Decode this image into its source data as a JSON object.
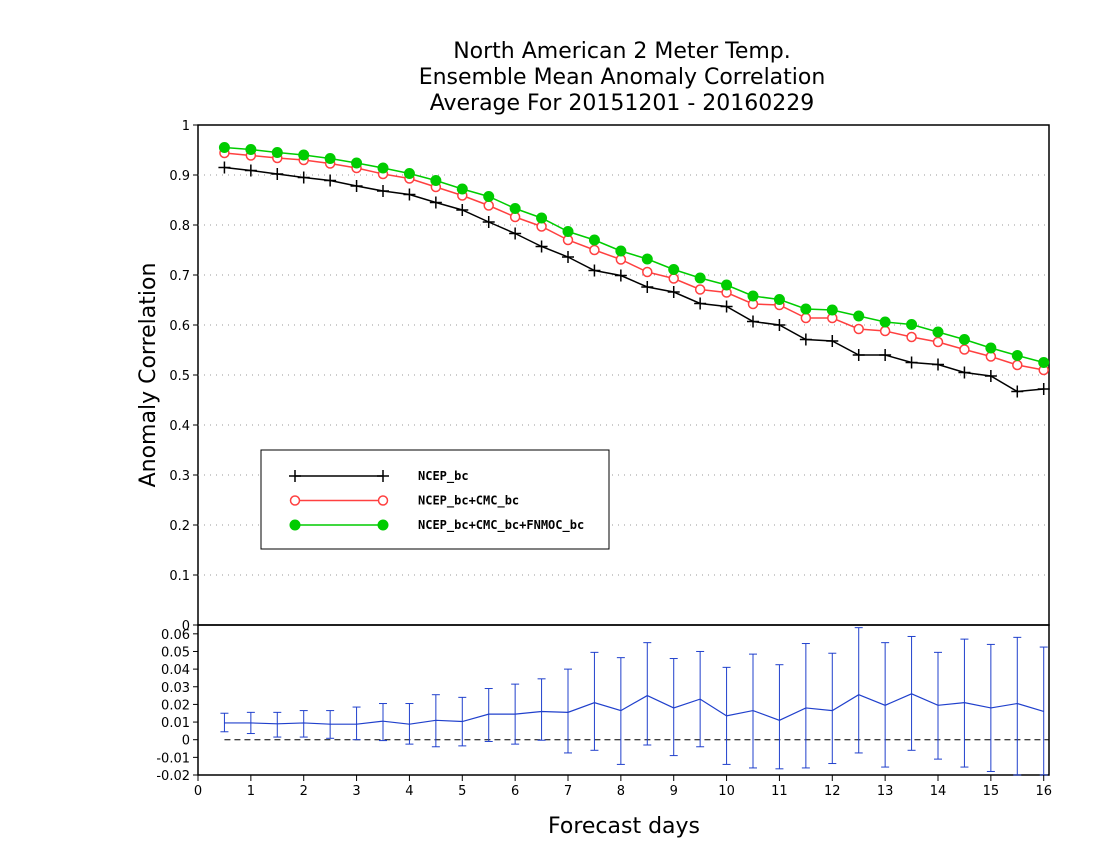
{
  "chart_data": [
    {
      "type": "line",
      "title_lines": [
        "North American 2 Meter Temp.",
        "Ensemble Mean Anomaly Correlation",
        "Average For 20151201 - 20160229"
      ],
      "ylabel": "Anomaly Correlation",
      "ylim": [
        0,
        1
      ],
      "yticks": [
        "0",
        "0.1",
        "0.2",
        "0.3",
        "0.4",
        "0.5",
        "0.6",
        "0.7",
        "0.8",
        "0.9",
        "1"
      ],
      "xlim": [
        0,
        16.1
      ],
      "grid": true,
      "legend_position": "lower-left",
      "x": [
        0.5,
        1,
        1.5,
        2,
        2.5,
        3,
        3.5,
        4,
        4.5,
        5,
        5.5,
        6,
        6.5,
        7,
        7.5,
        8,
        8.5,
        9,
        9.5,
        10,
        10.5,
        11,
        11.5,
        12,
        12.5,
        13,
        13.5,
        14,
        14.5,
        15,
        15.5,
        16
      ],
      "series": [
        {
          "name": "NCEP_bc",
          "color": "#000000",
          "marker": "plus",
          "values": [
            0.915,
            0.909,
            0.902,
            0.895,
            0.889,
            0.878,
            0.868,
            0.861,
            0.845,
            0.83,
            0.806,
            0.783,
            0.757,
            0.736,
            0.709,
            0.699,
            0.676,
            0.666,
            0.643,
            0.637,
            0.607,
            0.6,
            0.571,
            0.568,
            0.54,
            0.54,
            0.525,
            0.521,
            0.505,
            0.498,
            0.467,
            0.472
          ]
        },
        {
          "name": "NCEP_bc+CMC_bc",
          "color": "#ff4040",
          "marker": "open-circle",
          "values": [
            0.944,
            0.939,
            0.934,
            0.93,
            0.923,
            0.914,
            0.902,
            0.893,
            0.876,
            0.859,
            0.839,
            0.816,
            0.797,
            0.77,
            0.75,
            0.731,
            0.706,
            0.693,
            0.671,
            0.665,
            0.642,
            0.64,
            0.614,
            0.614,
            0.592,
            0.588,
            0.576,
            0.566,
            0.551,
            0.537,
            0.52,
            0.51
          ]
        },
        {
          "name": "NCEP_bc+CMC_bc+FNMOC_bc",
          "color": "#00cc00",
          "marker": "filled-circle",
          "values": [
            0.955,
            0.951,
            0.945,
            0.94,
            0.933,
            0.924,
            0.914,
            0.903,
            0.889,
            0.872,
            0.857,
            0.833,
            0.814,
            0.787,
            0.77,
            0.748,
            0.732,
            0.711,
            0.694,
            0.68,
            0.658,
            0.651,
            0.632,
            0.63,
            0.618,
            0.606,
            0.601,
            0.586,
            0.571,
            0.554,
            0.539,
            0.525
          ]
        }
      ]
    },
    {
      "type": "line",
      "ylim": [
        -0.02,
        0.065
      ],
      "yticks": [
        "-0.02",
        "-0.01",
        "0",
        "0.01",
        "0.02",
        "0.03",
        "0.04",
        "0.05",
        "0.06"
      ],
      "xlabel": "Forecast days",
      "xticks": [
        "0",
        "1",
        "2",
        "3",
        "4",
        "5",
        "6",
        "7",
        "8",
        "9",
        "10",
        "11",
        "12",
        "13",
        "14",
        "15",
        "16"
      ],
      "xlim": [
        0,
        16.1
      ],
      "zero_line": "dashed",
      "x": [
        0.5,
        1,
        1.5,
        2,
        2.5,
        3,
        3.5,
        4,
        4.5,
        5,
        5.5,
        6,
        6.5,
        7,
        7.5,
        8,
        8.5,
        9,
        9.5,
        10,
        10.5,
        11,
        11.5,
        12,
        12.5,
        13,
        13.5,
        14,
        14.5,
        15,
        15.5,
        16
      ],
      "series": [
        {
          "color": "#2040cc",
          "values": [
            0.0095,
            0.0095,
            0.009,
            0.0095,
            0.0088,
            0.0088,
            0.0105,
            0.0088,
            0.011,
            0.0103,
            0.0145,
            0.0145,
            0.016,
            0.0155,
            0.021,
            0.0165,
            0.025,
            0.018,
            0.023,
            0.0135,
            0.0165,
            0.011,
            0.018,
            0.0165,
            0.0255,
            0.0195,
            0.026,
            0.0195,
            0.021,
            0.018,
            0.0205,
            0.016
          ],
          "error_low": [
            0.0045,
            0.0035,
            0.0015,
            0.0015,
            0.0008,
            0.0,
            -0.0005,
            -0.0025,
            -0.004,
            -0.0035,
            -0.001,
            -0.0025,
            -0.0003,
            -0.0075,
            -0.006,
            -0.014,
            -0.003,
            -0.009,
            -0.004,
            -0.014,
            -0.016,
            -0.0165,
            -0.016,
            -0.0135,
            -0.0075,
            -0.0155,
            -0.006,
            -0.011,
            -0.0155,
            -0.018,
            -0.02,
            -0.02
          ],
          "error_high": [
            0.015,
            0.0155,
            0.0155,
            0.0165,
            0.0165,
            0.0185,
            0.0205,
            0.0205,
            0.0255,
            0.024,
            0.029,
            0.0315,
            0.0345,
            0.04,
            0.0495,
            0.0465,
            0.055,
            0.046,
            0.05,
            0.041,
            0.0485,
            0.0425,
            0.0545,
            0.049,
            0.0635,
            0.055,
            0.0585,
            0.0495,
            0.057,
            0.054,
            0.058,
            0.0525
          ]
        }
      ]
    }
  ]
}
